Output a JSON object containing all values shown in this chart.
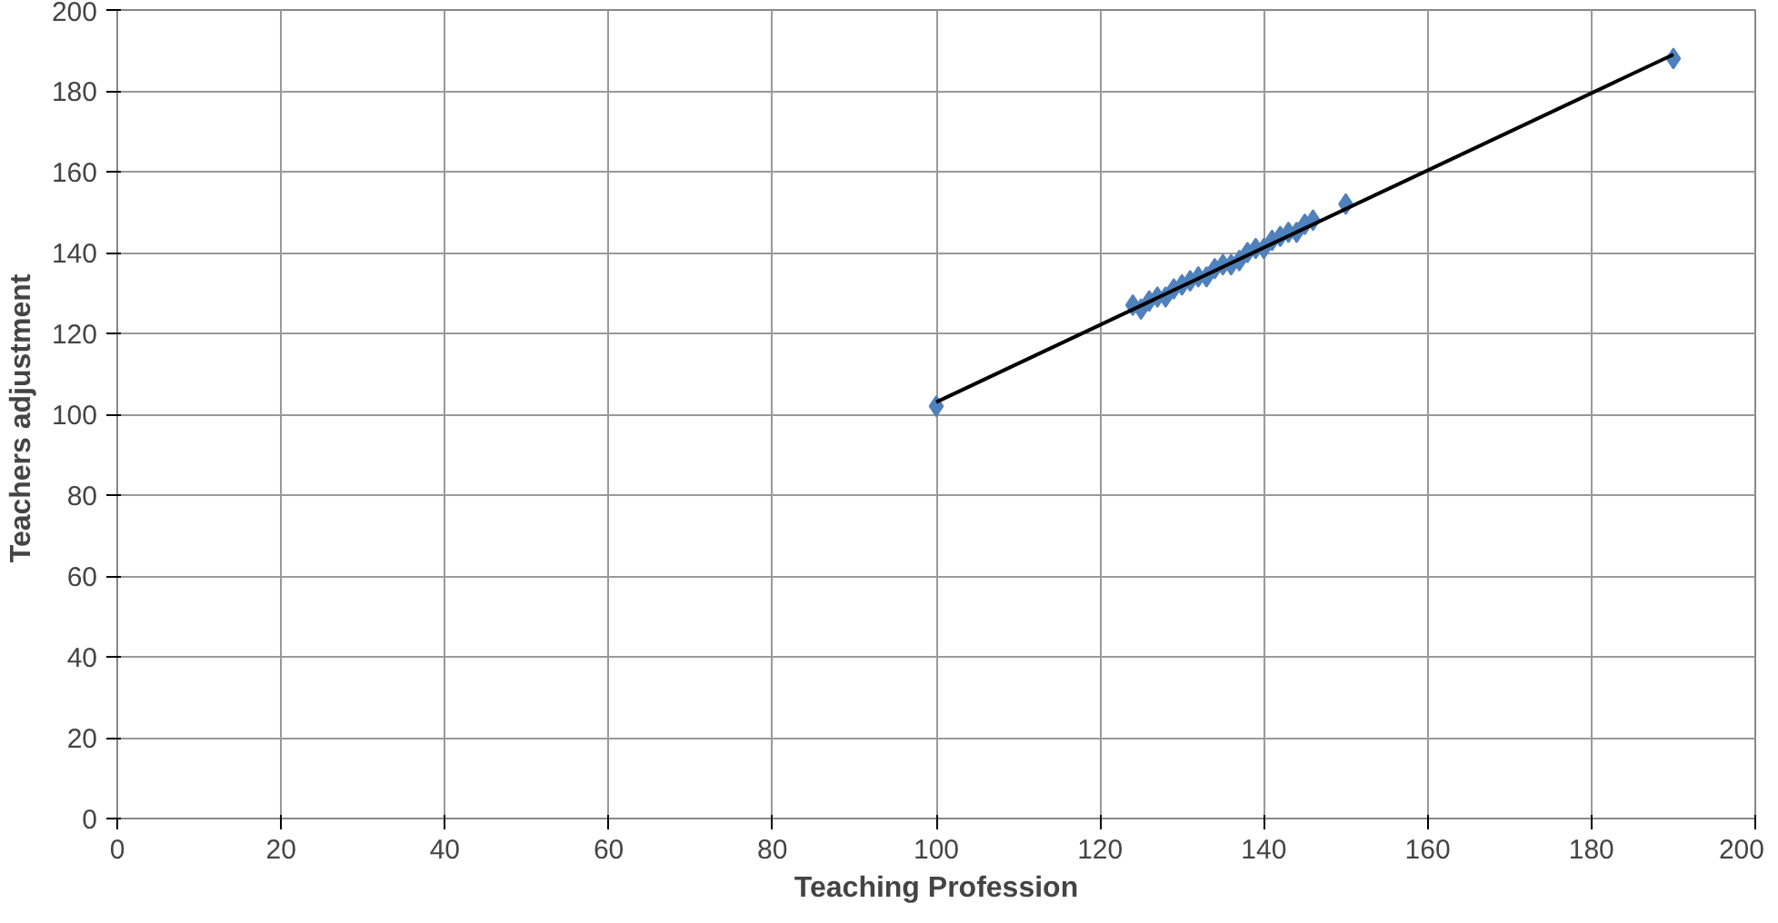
{
  "chart_data": {
    "type": "scatter",
    "xlabel": "Teaching Profession",
    "ylabel": "Teachers  adjustment",
    "xlim": [
      0,
      200
    ],
    "ylim": [
      0,
      200
    ],
    "xticks": [
      0,
      20,
      40,
      60,
      80,
      100,
      120,
      140,
      160,
      180,
      200
    ],
    "yticks": [
      0,
      20,
      40,
      60,
      80,
      100,
      120,
      140,
      160,
      180,
      200
    ],
    "grid": true,
    "series": [
      {
        "color": "#4f81bd",
        "marker": "diamond",
        "x": [
          100,
          124,
          125,
          126,
          127,
          128,
          129,
          130,
          131,
          132,
          133,
          134,
          135,
          136,
          137,
          138,
          139,
          140,
          141,
          142,
          143,
          144,
          145,
          146,
          150,
          190
        ],
        "values": [
          102,
          127,
          126,
          128,
          129,
          129,
          131,
          132,
          133,
          134,
          134,
          136,
          137,
          137,
          138,
          140,
          141,
          141,
          143,
          144,
          145,
          145,
          147,
          148,
          152,
          188
        ]
      },
      {
        "type": "line",
        "color": "#000000",
        "x": [
          100,
          190
        ],
        "values": [
          103,
          189
        ],
        "marker": "none"
      }
    ]
  }
}
